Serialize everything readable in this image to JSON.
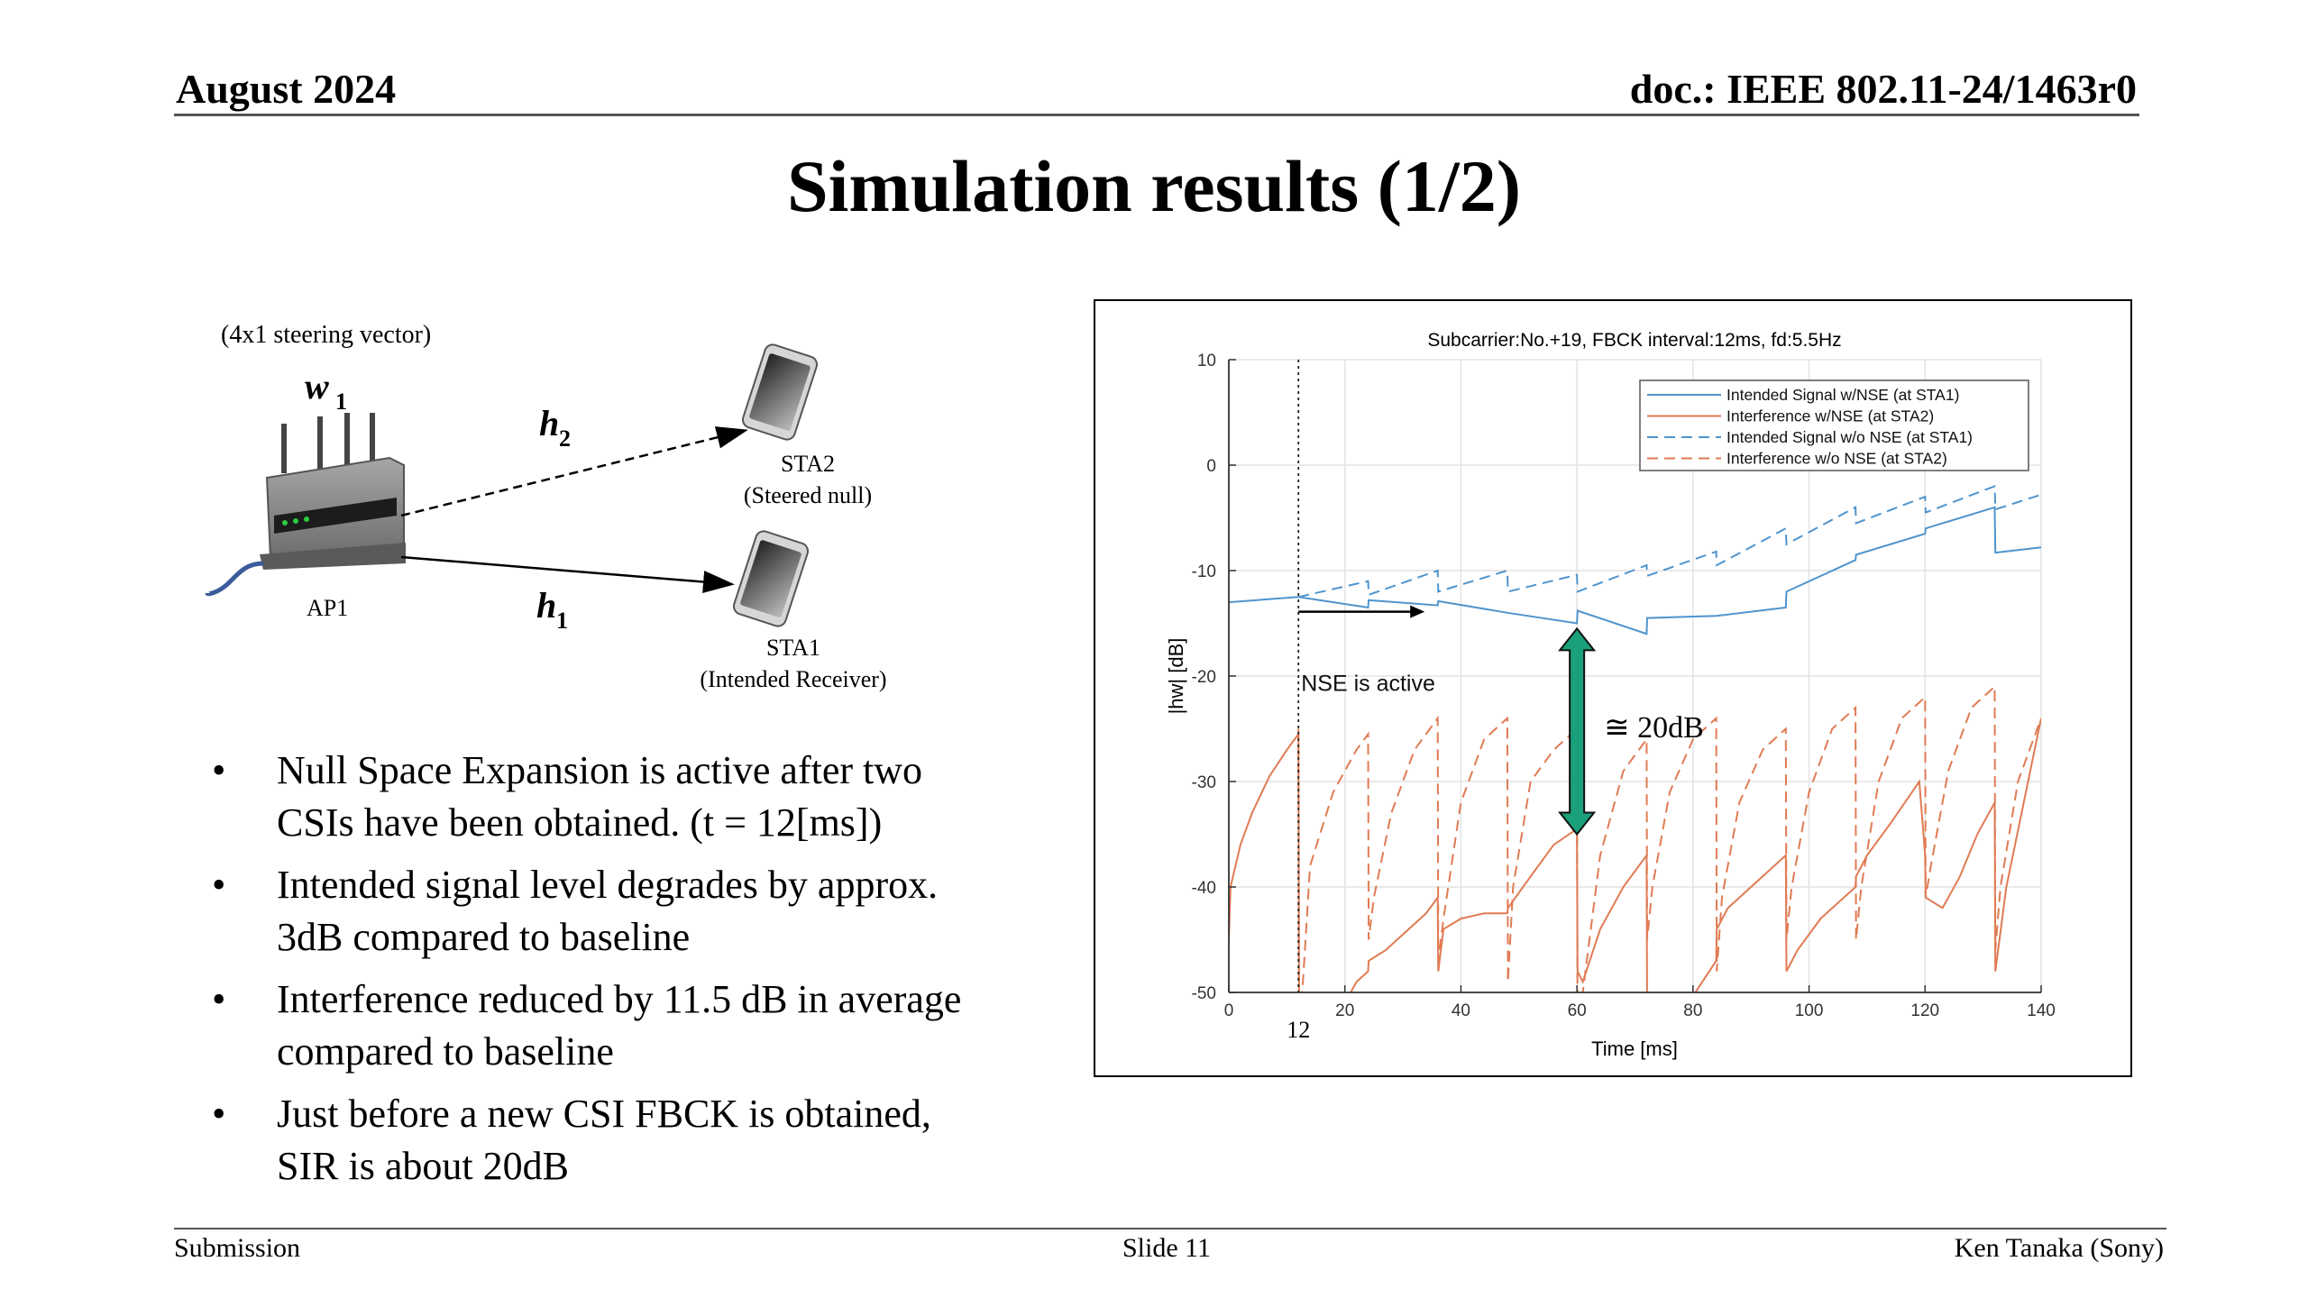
{
  "header": {
    "date": "August 2024",
    "doc": "doc.: IEEE 802.11-24/1463r0"
  },
  "title": "Simulation results (1/2)",
  "diagram": {
    "steering": "(4x1 steering vector)",
    "w_label": "w",
    "w_sub": "1",
    "h2_label": "h",
    "h2_sub": "2",
    "h1_label": "h",
    "h1_sub": "1",
    "ap": "AP1",
    "sta2_name": "STA2",
    "sta2_role": "(Steered null)",
    "sta1_name": "STA1",
    "sta1_role": "(Intended Receiver)"
  },
  "bullets": [
    {
      "l1": "Null Space Expansion is active after two",
      "l2": "CSIs have been obtained. (t = 12[ms])"
    },
    {
      "l1": "Intended signal level degrades by approx.",
      "l2": "3dB compared to baseline"
    },
    {
      "l1": "Interference reduced by 11.5 dB in average",
      "l2": "compared to baseline"
    },
    {
      "l1": "Just before a new CSI FBCK is obtained,",
      "l2": "SIR is about 20dB"
    }
  ],
  "bullet_mark": "•",
  "footer": {
    "left": "Submission",
    "center": "Slide 11",
    "right": "Ken Tanaka (Sony)"
  },
  "chart_data": {
    "type": "line",
    "title": "Subcarrier:No.+19,  FBCK interval:12ms, fd:5.5Hz",
    "xlabel": "Time [ms]",
    "ylabel": "|hw| [dB]",
    "xlim": [
      0,
      140
    ],
    "ylim": [
      -50,
      10
    ],
    "xticks": [
      0,
      20,
      40,
      60,
      80,
      100,
      120,
      140
    ],
    "yticks": [
      10,
      0,
      -10,
      -20,
      -30,
      -40,
      -50
    ],
    "grid": true,
    "legend_position": "top-right",
    "colors": {
      "blue": "#4f94cd",
      "orange": "#e07b54",
      "arrow": "#1aa07a"
    },
    "marker_line": {
      "x": 12,
      "label": "12"
    },
    "annotations": {
      "nse": "NSE is active",
      "sir": "≅ 20dB"
    },
    "sir_arrow": {
      "x": 60,
      "y_top": -15.5,
      "y_bottom": -35
    },
    "series": [
      {
        "name": "Intended Signal w/NSE (at STA1)",
        "style": "solid",
        "color": "#4f94cd",
        "x": [
          0,
          12,
          24,
          24.1,
          36,
          36.1,
          48,
          60,
          60.1,
          72,
          72.1,
          84,
          96,
          96.1,
          108,
          108.1,
          120,
          120.1,
          132,
          132.1,
          140
        ],
        "y": [
          -13,
          -12.5,
          -13.5,
          -12.8,
          -13.3,
          -12.9,
          -14,
          -15,
          -13.8,
          -16,
          -14.5,
          -14.3,
          -13.5,
          -12,
          -9,
          -8.5,
          -6.5,
          -6,
          -4,
          -8.3,
          -7.8
        ]
      },
      {
        "name": "Interference w/NSE (at STA2)",
        "style": "solid",
        "color": "#e07b54",
        "x": [
          0,
          0.3,
          2,
          4,
          7,
          10,
          12,
          12.1,
          15,
          17,
          20,
          22,
          24,
          24.1,
          27,
          30,
          34,
          36,
          36.1,
          37,
          40,
          44,
          48,
          48.1,
          52,
          56,
          60,
          60.1,
          61,
          64,
          68,
          72,
          72.1,
          74,
          78,
          84,
          84.1,
          86,
          90,
          96,
          96.1,
          98,
          102,
          108,
          108.1,
          110,
          114,
          119,
          120,
          120.1,
          123,
          126,
          129,
          132,
          132.1,
          134,
          137,
          140
        ],
        "y": [
          -45,
          -40,
          -36,
          -33,
          -29.5,
          -27,
          -25.5,
          -50,
          -54,
          -60,
          -51,
          -49,
          -48,
          -47,
          -46,
          -44.5,
          -42.5,
          -41,
          -48,
          -44,
          -43,
          -42.5,
          -42.5,
          -42,
          -39,
          -36,
          -34.5,
          -48,
          -49,
          -44,
          -40,
          -37,
          -53,
          -55,
          -52,
          -47,
          -44,
          -42,
          -40,
          -37,
          -48,
          -46,
          -43,
          -40,
          -39,
          -37,
          -34,
          -30,
          -37,
          -41,
          -42,
          -39,
          -35,
          -32,
          -48,
          -40,
          -32,
          -24
        ]
      },
      {
        "name": "Intended Signal w/o NSE (at STA1)",
        "style": "dashed",
        "color": "#4f94cd",
        "x": [
          12,
          24,
          24.1,
          36,
          36.1,
          48,
          48.1,
          60,
          60.1,
          72,
          72.1,
          84,
          84.1,
          96,
          96.1,
          108,
          108.1,
          120,
          120.1,
          132,
          132.1,
          140
        ],
        "y": [
          -12.5,
          -11,
          -12.3,
          -10,
          -12,
          -10,
          -12,
          -10.4,
          -12,
          -9.5,
          -10.5,
          -8.2,
          -9.5,
          -6,
          -7.5,
          -4,
          -5.5,
          -3,
          -4.5,
          -2,
          -4.2,
          -2.8
        ]
      },
      {
        "name": "Interference w/o NSE (at STA2)",
        "style": "dashed",
        "color": "#e07b54",
        "x": [
          12,
          12.1,
          14,
          18,
          22,
          24,
          24.1,
          25,
          28,
          32,
          36,
          36.1,
          37,
          40,
          44,
          48,
          48.1,
          49,
          52,
          56,
          60,
          60.1,
          61,
          64,
          68,
          72,
          72.1,
          73,
          76,
          80,
          84,
          84.1,
          85,
          88,
          92,
          96,
          96.1,
          97,
          100,
          104,
          108,
          108.1,
          109,
          112,
          116,
          120,
          120.1,
          121,
          124,
          128,
          132,
          132.1,
          133,
          136,
          140
        ],
        "y": [
          -25,
          -55,
          -38,
          -31,
          -27,
          -25.5,
          -45,
          -41,
          -33,
          -27,
          -24,
          -47,
          -43,
          -32,
          -26,
          -24,
          -49,
          -40,
          -30,
          -27,
          -25,
          -55,
          -50,
          -37,
          -29,
          -26,
          -45,
          -40,
          -31,
          -26,
          -24,
          -48,
          -41,
          -32,
          -27,
          -25,
          -45,
          -40,
          -31,
          -25,
          -23,
          -45,
          -40,
          -30,
          -24,
          -22,
          -41,
          -38,
          -29,
          -23,
          -21,
          -46,
          -40,
          -30,
          -24
        ]
      }
    ]
  }
}
